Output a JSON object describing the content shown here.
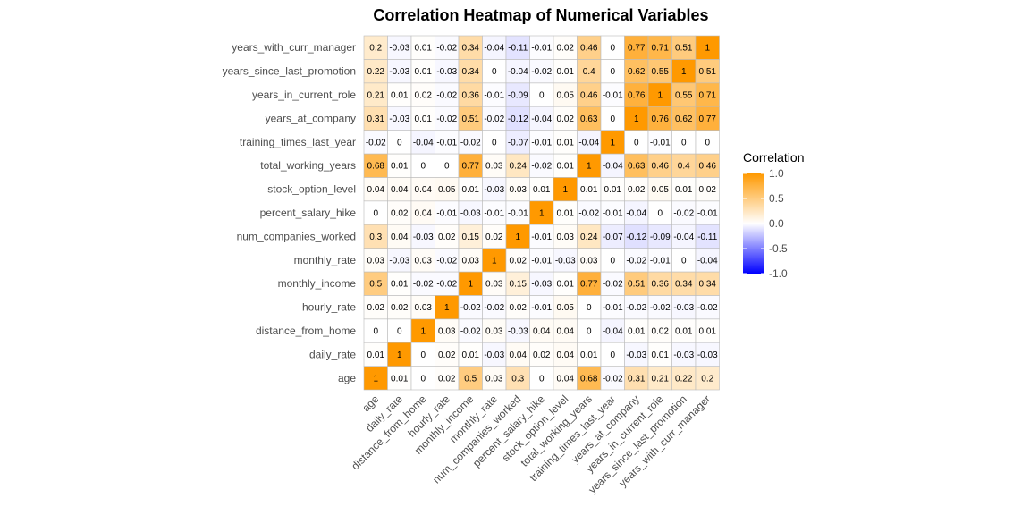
{
  "chart_data": {
    "type": "heatmap",
    "title": "Correlation Heatmap of Numerical Variables",
    "variables": [
      "age",
      "daily_rate",
      "distance_from_home",
      "hourly_rate",
      "monthly_income",
      "monthly_rate",
      "num_companies_worked",
      "percent_salary_hike",
      "stock_option_level",
      "total_working_years",
      "training_times_last_year",
      "years_at_company",
      "years_in_current_role",
      "years_since_last_promotion",
      "years_with_curr_manager"
    ],
    "matrix": [
      [
        1,
        0.01,
        0,
        0.02,
        0.5,
        0.03,
        0.3,
        0,
        0.04,
        0.68,
        -0.02,
        0.31,
        0.21,
        0.22,
        0.2
      ],
      [
        0.01,
        1,
        0,
        0.02,
        0.01,
        -0.03,
        0.04,
        0.02,
        0.04,
        0.01,
        0,
        -0.03,
        0.01,
        -0.03,
        -0.03
      ],
      [
        0,
        0,
        1,
        0.03,
        -0.02,
        0.03,
        -0.03,
        0.04,
        0.04,
        0,
        -0.04,
        0.01,
        0.02,
        0.01,
        0.01
      ],
      [
        0.02,
        0.02,
        0.03,
        1,
        -0.02,
        -0.02,
        0.02,
        -0.01,
        0.05,
        0,
        -0.01,
        -0.02,
        -0.02,
        -0.03,
        -0.02
      ],
      [
        0.5,
        0.01,
        -0.02,
        -0.02,
        1,
        0.03,
        0.15,
        -0.03,
        0.01,
        0.77,
        -0.02,
        0.51,
        0.36,
        0.34,
        0.34
      ],
      [
        0.03,
        -0.03,
        0.03,
        -0.02,
        0.03,
        1,
        0.02,
        -0.01,
        -0.03,
        0.03,
        0,
        -0.02,
        -0.01,
        0,
        -0.04
      ],
      [
        0.3,
        0.04,
        -0.03,
        0.02,
        0.15,
        0.02,
        1,
        -0.01,
        0.03,
        0.24,
        -0.07,
        -0.12,
        -0.09,
        -0.04,
        -0.11
      ],
      [
        0,
        0.02,
        0.04,
        -0.01,
        -0.03,
        -0.01,
        -0.01,
        1,
        0.01,
        -0.02,
        -0.01,
        -0.04,
        0,
        -0.02,
        -0.01
      ],
      [
        0.04,
        0.04,
        0.04,
        0.05,
        0.01,
        -0.03,
        0.03,
        0.01,
        1,
        0.01,
        0.01,
        0.02,
        0.05,
        0.01,
        0.02
      ],
      [
        0.68,
        0.01,
        0,
        0,
        0.77,
        0.03,
        0.24,
        -0.02,
        0.01,
        1,
        -0.04,
        0.63,
        0.46,
        0.4,
        0.46
      ],
      [
        -0.02,
        0,
        -0.04,
        -0.01,
        -0.02,
        0,
        -0.07,
        -0.01,
        0.01,
        -0.04,
        1,
        0,
        -0.01,
        0,
        0
      ],
      [
        0.31,
        -0.03,
        0.01,
        -0.02,
        0.51,
        -0.02,
        -0.12,
        -0.04,
        0.02,
        0.63,
        0,
        1,
        0.76,
        0.62,
        0.77
      ],
      [
        0.21,
        0.01,
        0.02,
        -0.02,
        0.36,
        -0.01,
        -0.09,
        0,
        0.05,
        0.46,
        -0.01,
        0.76,
        1,
        0.55,
        0.71
      ],
      [
        0.22,
        -0.03,
        0.01,
        -0.03,
        0.34,
        0,
        -0.04,
        -0.02,
        0.01,
        0.4,
        0,
        0.62,
        0.55,
        1,
        0.51
      ],
      [
        0.2,
        -0.03,
        0.01,
        -0.02,
        0.34,
        -0.04,
        -0.11,
        -0.01,
        0.02,
        0.46,
        0,
        0.77,
        0.71,
        0.51,
        1
      ]
    ],
    "legend": {
      "title": "Correlation",
      "ticks": [
        1.0,
        0.5,
        0.0,
        -0.5,
        -1.0
      ],
      "tick_labels": [
        "1.0",
        "0.5",
        "0.0",
        "-0.5",
        "-1.0"
      ],
      "placement": "right",
      "low_color": "#0000FF",
      "mid_color": "#FFFFFF",
      "high_color": "#FF9900"
    },
    "range": [
      -1,
      1
    ],
    "grid_color": "#bbbbbb"
  }
}
